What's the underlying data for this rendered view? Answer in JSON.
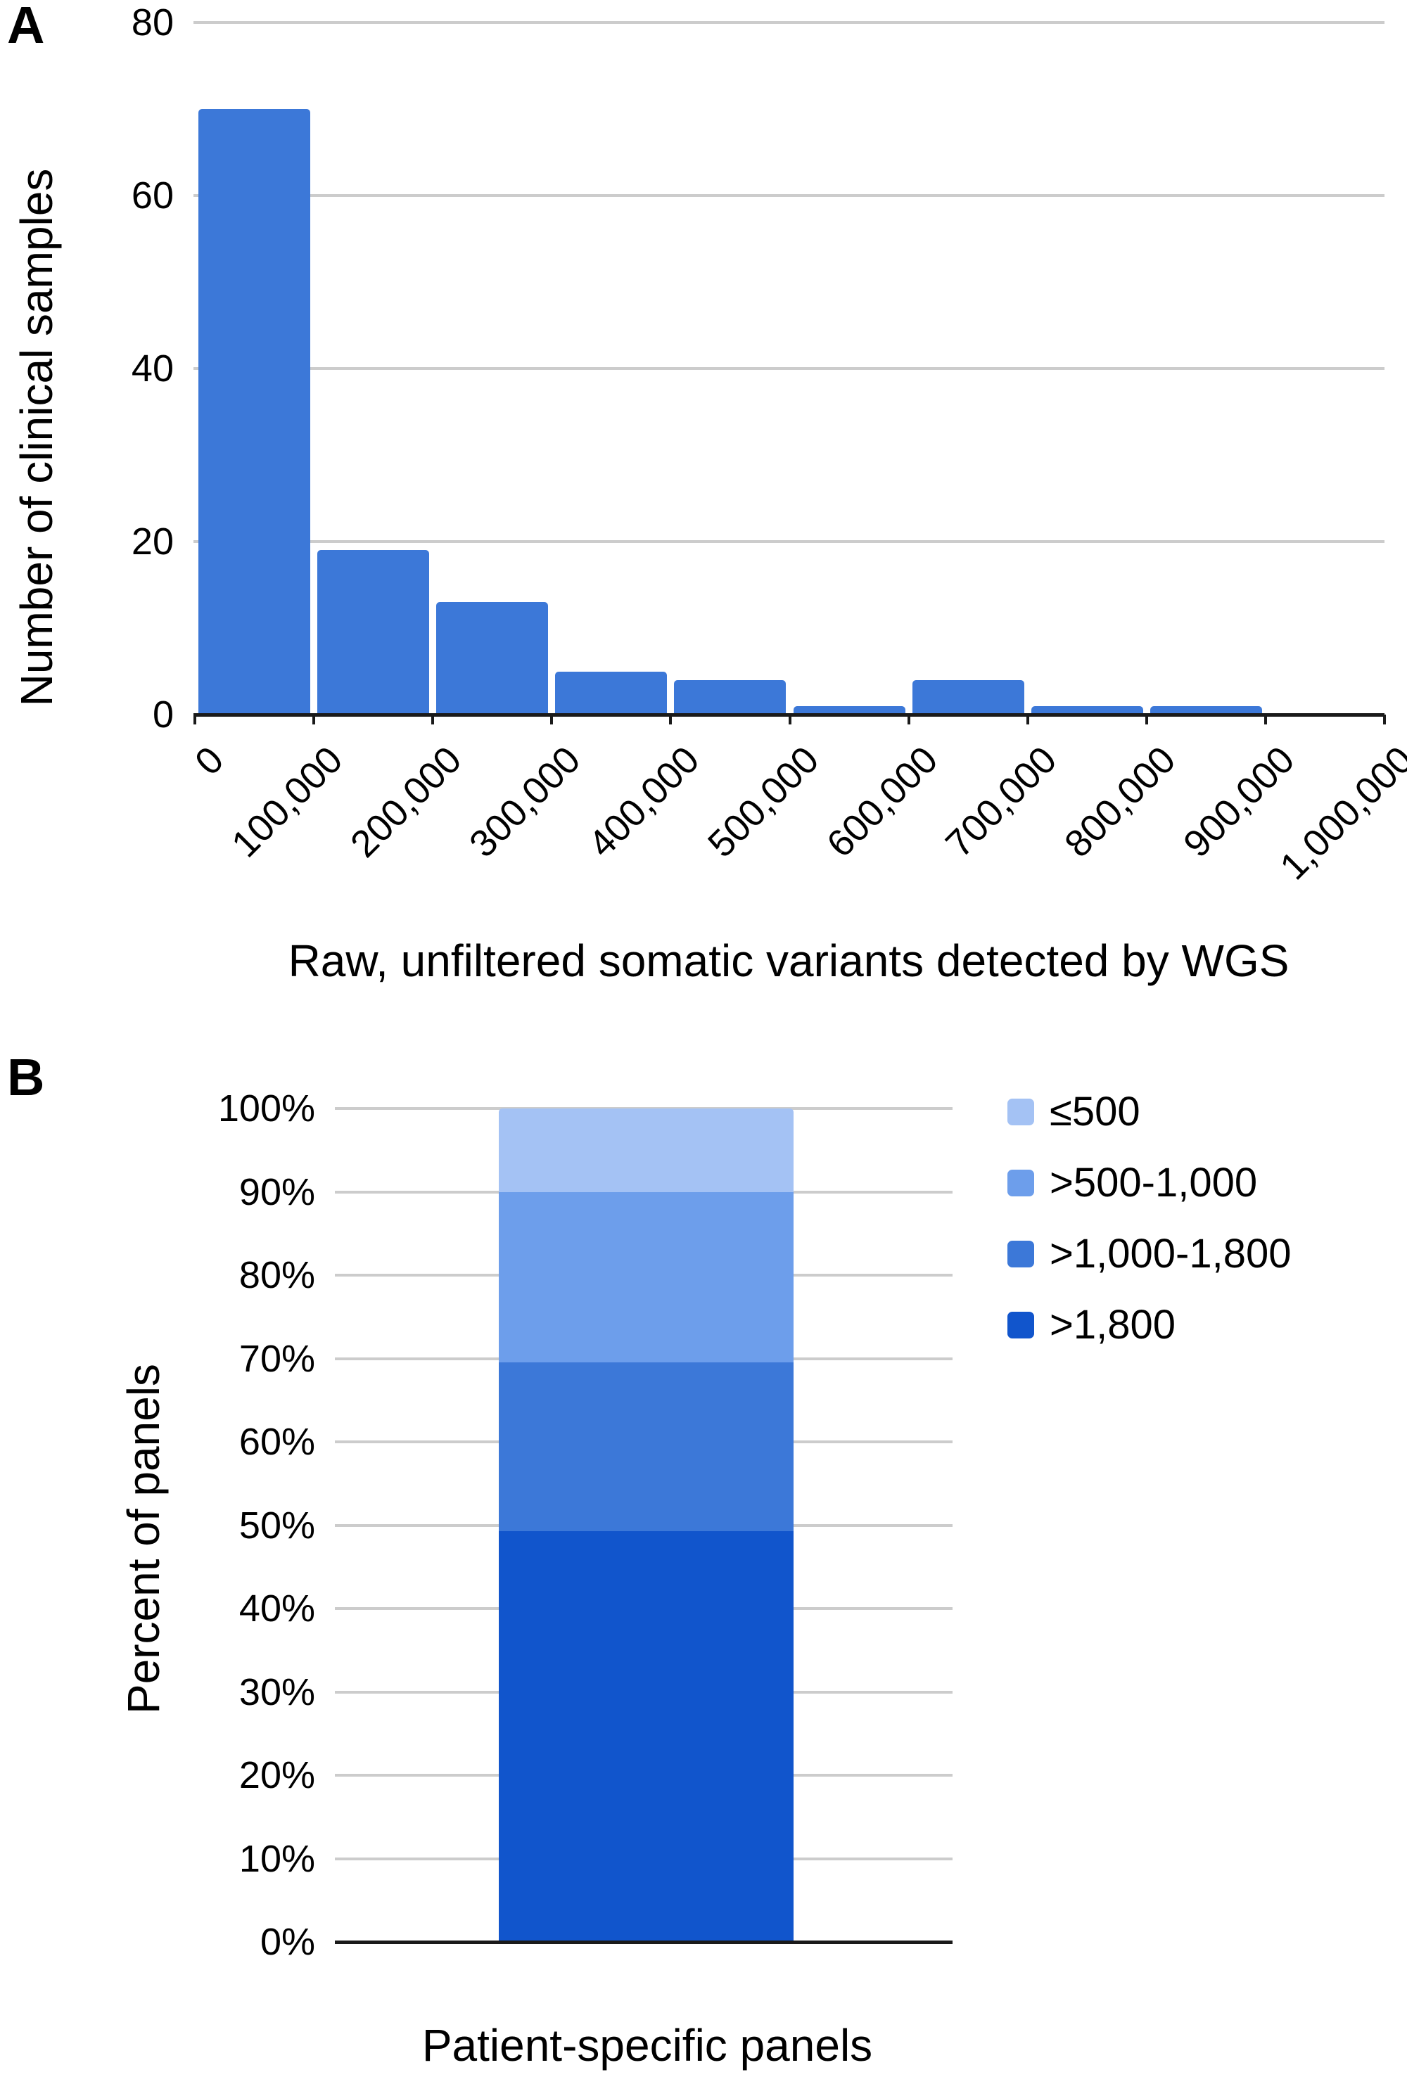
{
  "panels": {
    "a": {
      "label": "A"
    },
    "b": {
      "label": "B"
    }
  },
  "chart_data": [
    {
      "panel": "A",
      "type": "bar",
      "subtype": "histogram",
      "title": "",
      "xlabel": "Raw, unfiltered somatic variants detected by WGS",
      "ylabel": "Number of clinical samples",
      "x_tick_labels": [
        "0",
        "100,000",
        "200,000",
        "300,000",
        "400,000",
        "500,000",
        "600,000",
        "700,000",
        "800,000",
        "900,000",
        "1,000,000"
      ],
      "bin_ranges": [
        "0-100,000",
        "100,000-200,000",
        "200,000-300,000",
        "300,000-400,000",
        "400,000-500,000",
        "500,000-600,000",
        "600,000-700,000",
        "700,000-800,000",
        "800,000-900,000",
        "900,000-1,000,000"
      ],
      "values": [
        70,
        19,
        13,
        5,
        4,
        1,
        4,
        1,
        1,
        0
      ],
      "y_ticks": [
        0,
        20,
        40,
        60,
        80
      ],
      "ylim": [
        0,
        80
      ],
      "xlim": [
        0,
        1000000
      ],
      "bar_color": "#3c78d8",
      "gridline_color": "#cccccc",
      "axis_color": "#1a1a1a",
      "grid": true,
      "x_tick_rotation_deg": -45
    },
    {
      "panel": "B",
      "type": "stacked-bar",
      "title": "",
      "xlabel": "Patient-specific panels",
      "ylabel": "Percent of panels",
      "categories": [
        "Patient-specific panels"
      ],
      "y_tick_labels": [
        "0%",
        "10%",
        "20%",
        "30%",
        "40%",
        "50%",
        "60%",
        "70%",
        "80%",
        "90%",
        "100%"
      ],
      "y_ticks": [
        0,
        10,
        20,
        30,
        40,
        50,
        60,
        70,
        80,
        90,
        100
      ],
      "ylim": [
        0,
        100
      ],
      "series": [
        {
          "name": "≤500",
          "color": "#a4c2f4",
          "value": 10
        },
        {
          "name": ">500-1,000",
          "color": "#6d9eeb",
          "value": 20.5
        },
        {
          "name": ">1,000-1,800",
          "color": "#3c78d8",
          "value": 20.2
        },
        {
          "name": ">1,800",
          "color": "#1155cc",
          "value": 49.3
        }
      ],
      "stack_order": "first-series-on-top",
      "legend_position": "right",
      "gridline_color": "#cccccc",
      "axis_color": "#1a1a1a",
      "grid": true
    }
  ]
}
